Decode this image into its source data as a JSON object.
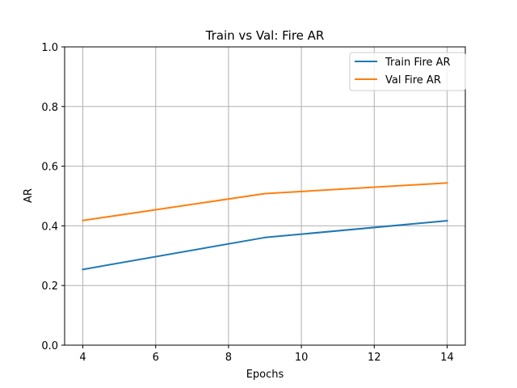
{
  "chart_data": {
    "type": "line",
    "title": "Train vs Val: Fire AR",
    "xlabel": "Epochs",
    "ylabel": "AR",
    "x": [
      4,
      9,
      14
    ],
    "series": [
      {
        "name": "Train Fire AR",
        "values": [
          0.254,
          0.361,
          0.417
        ],
        "color": "#1f77b4"
      },
      {
        "name": "Val Fire AR",
        "values": [
          0.418,
          0.508,
          0.544
        ],
        "color": "#ff7f0e"
      }
    ],
    "xlim": [
      3.5,
      14.5
    ],
    "ylim": [
      0.0,
      1.0
    ],
    "xticks": [
      4,
      6,
      8,
      10,
      12,
      14
    ],
    "yticks": [
      "0.0",
      "0.2",
      "0.4",
      "0.6",
      "0.8",
      "1.0"
    ],
    "grid": true,
    "legend_position": "top-right"
  }
}
